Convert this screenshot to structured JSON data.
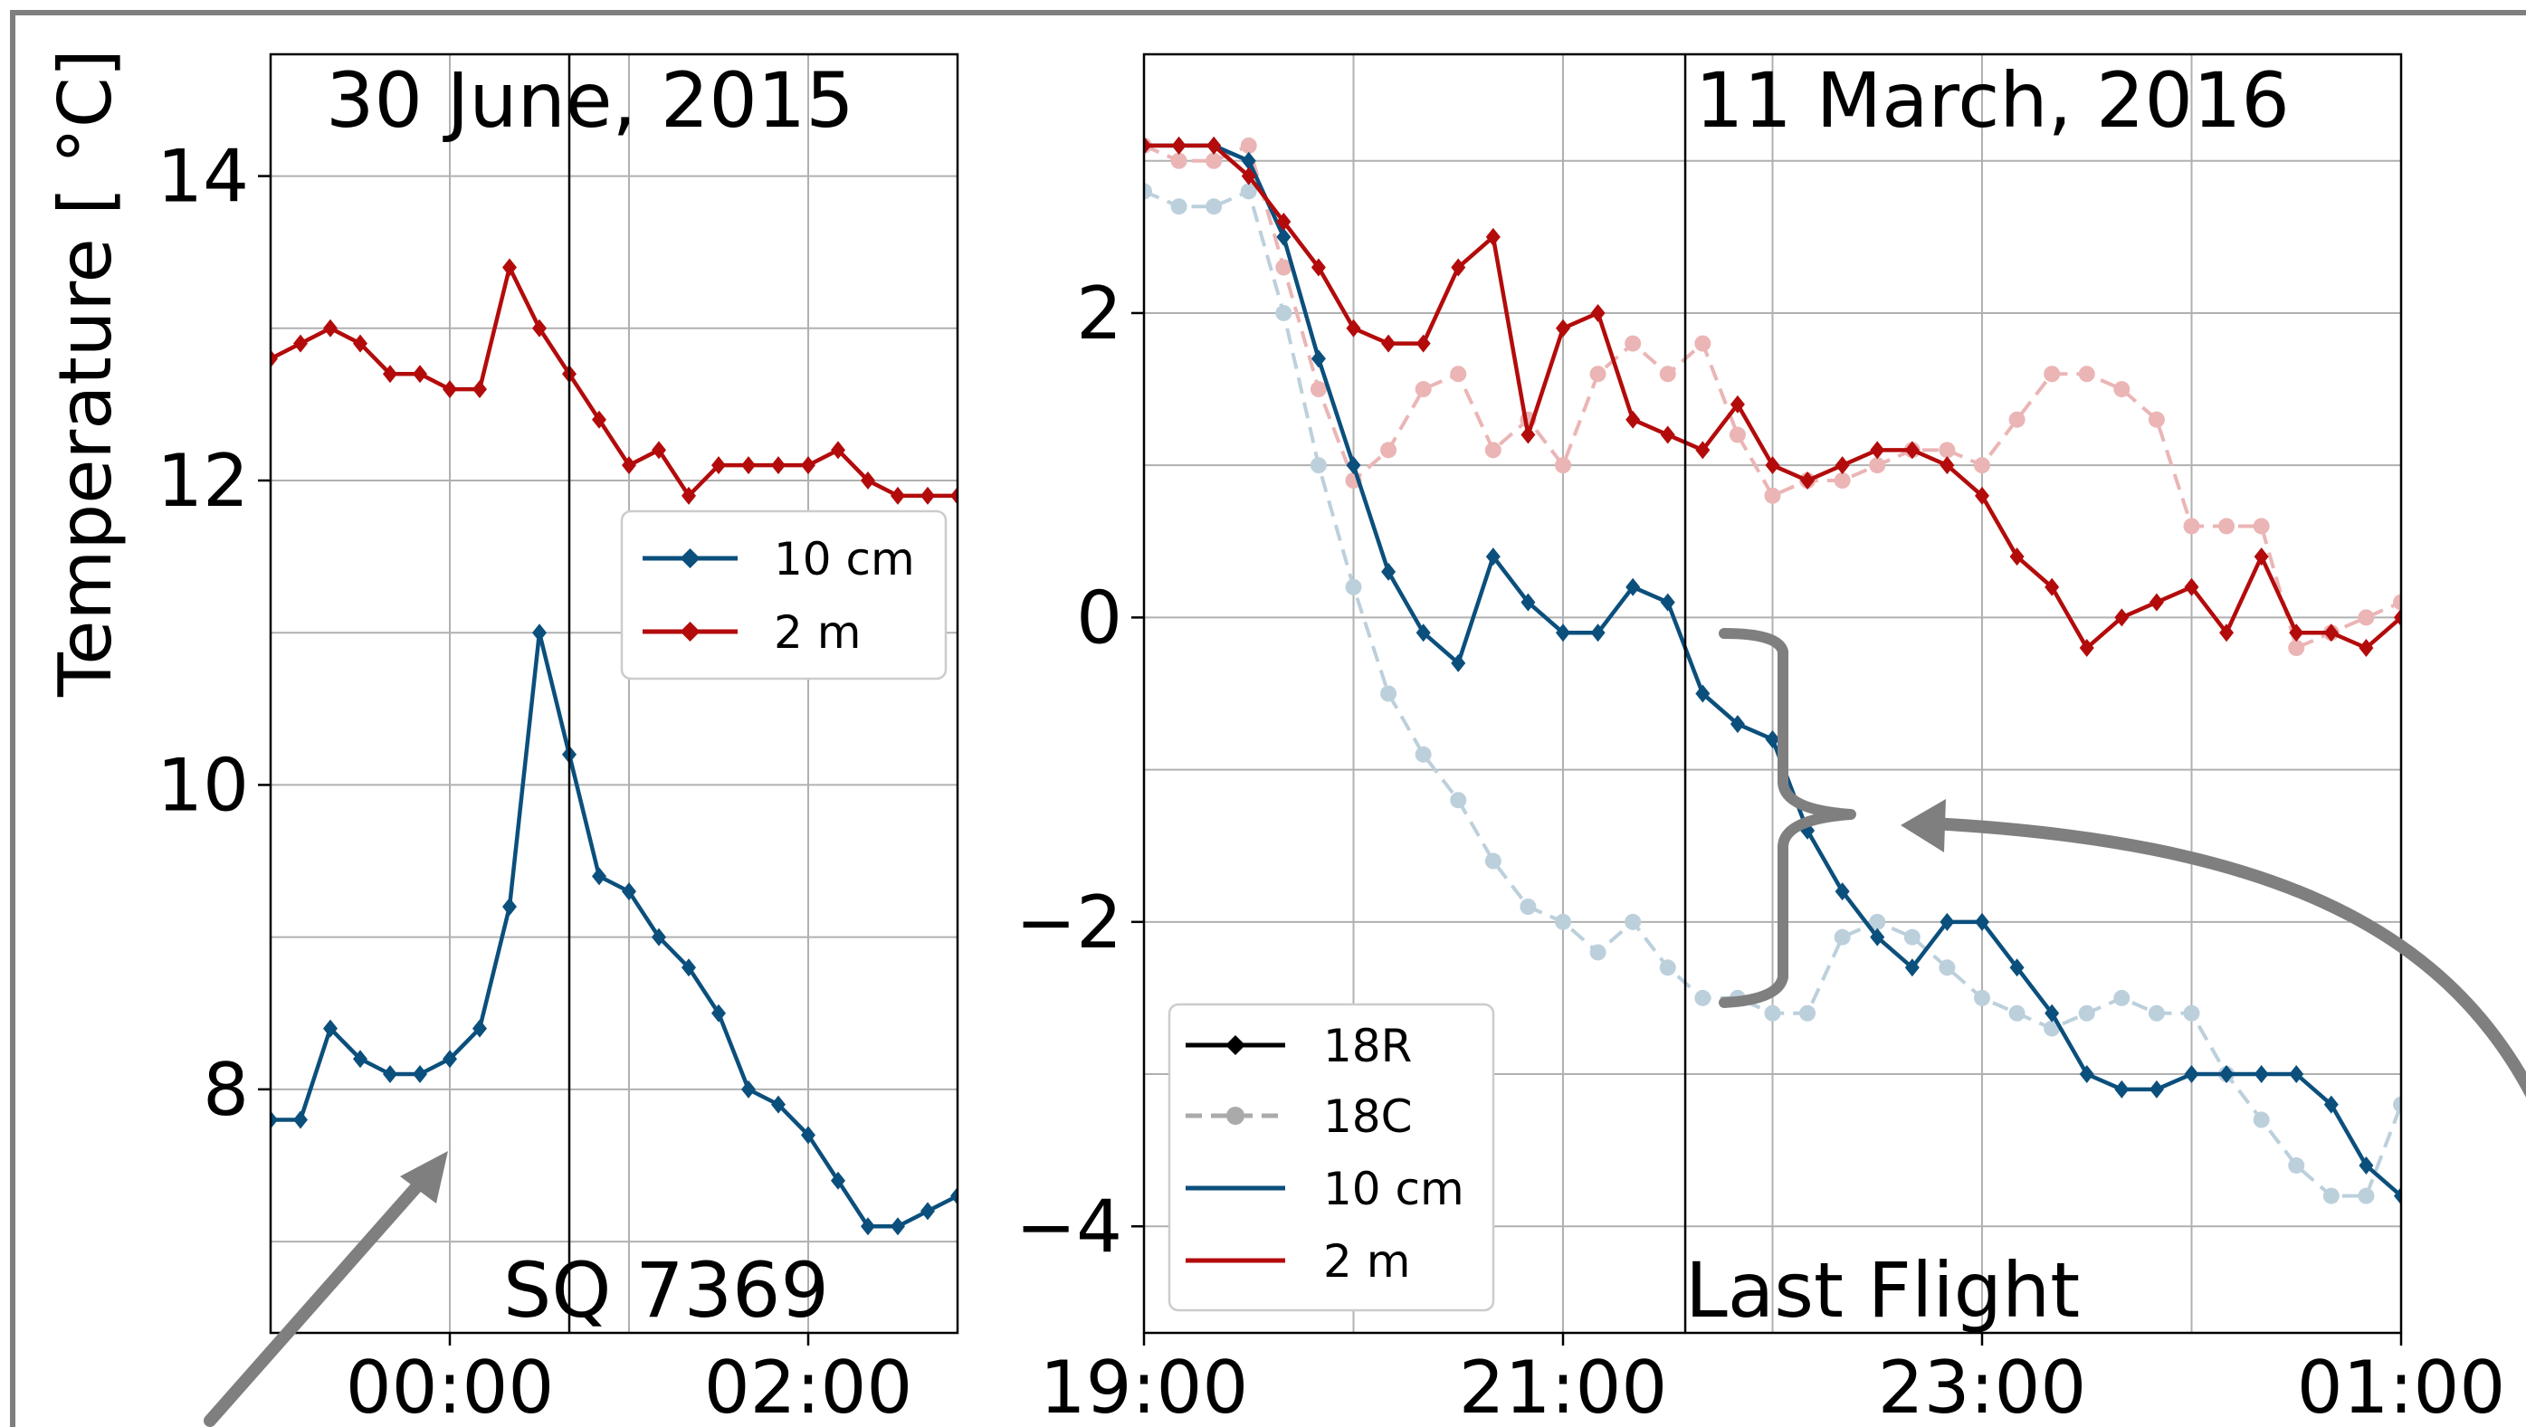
{
  "colors": {
    "blue": "#0b4f7c",
    "red": "#b30b0b",
    "blue_faint": "#bcd0dc",
    "red_faint": "#ebb5b5",
    "black": "#000000",
    "gray": "#7f7f7f"
  },
  "ylabel": "Temperature [ °C]",
  "chart_data": [
    {
      "type": "line",
      "annotation_top": "30 June, 2015",
      "annotation_bottom": "SQ 7369",
      "ylabel": "Temperature [ °C]",
      "xlabel": "",
      "xlim": [
        "23:00",
        "02:50"
      ],
      "ylim": [
        6.4,
        14.8
      ],
      "xticks": [
        "00:00",
        "02:00"
      ],
      "yticks": [
        8,
        10,
        12,
        14
      ],
      "grid": true,
      "event_line_time": "00:40",
      "legend": {
        "position": "center-right",
        "entries": [
          "10 cm",
          "2 m"
        ]
      },
      "series": [
        {
          "name": "10 cm",
          "color": "#0b4f7c",
          "style": "solid-diamond",
          "x": [
            "23:00",
            "23:10",
            "23:20",
            "23:30",
            "23:40",
            "23:50",
            "00:00",
            "00:10",
            "00:20",
            "00:30",
            "00:40",
            "00:50",
            "01:00",
            "01:10",
            "01:20",
            "01:30",
            "01:40",
            "01:50",
            "02:00",
            "02:10",
            "02:20",
            "02:30",
            "02:40",
            "02:50"
          ],
          "y": [
            7.8,
            7.8,
            8.4,
            8.2,
            8.1,
            8.1,
            8.2,
            8.4,
            9.2,
            11.0,
            10.2,
            9.4,
            9.3,
            9.0,
            8.8,
            8.5,
            8.0,
            7.9,
            7.7,
            7.4,
            7.1,
            7.1,
            7.2,
            7.3
          ]
        },
        {
          "name": "2 m",
          "color": "#b30b0b",
          "style": "solid-diamond",
          "x": [
            "23:00",
            "23:10",
            "23:20",
            "23:30",
            "23:40",
            "23:50",
            "00:00",
            "00:10",
            "00:20",
            "00:30",
            "00:40",
            "00:50",
            "01:00",
            "01:10",
            "01:20",
            "01:30",
            "01:40",
            "01:50",
            "02:00",
            "02:10",
            "02:20",
            "02:30",
            "02:40",
            "02:50"
          ],
          "y": [
            12.8,
            12.9,
            13.0,
            12.9,
            12.7,
            12.7,
            12.6,
            12.6,
            13.4,
            13.0,
            12.7,
            12.4,
            12.1,
            12.2,
            11.9,
            12.1,
            12.1,
            12.1,
            12.1,
            12.2,
            12.0,
            11.9,
            11.9,
            11.9
          ]
        }
      ]
    },
    {
      "type": "line",
      "annotation_top": "11 March, 2016",
      "annotation_bottom": "Last Flight",
      "xlabel": "",
      "ylabel": "",
      "xlim": [
        "19:00",
        "01:00"
      ],
      "ylim": [
        -4.7,
        3.7
      ],
      "xticks": [
        "19:00",
        "21:00",
        "23:00",
        "01:00"
      ],
      "yticks": [
        -4,
        -2,
        0,
        2
      ],
      "yticklabels": [
        "−4",
        "−2",
        "0",
        "2"
      ],
      "grid": true,
      "event_line_time": "21:35",
      "legend": {
        "position": "lower-left",
        "entries": [
          "18R",
          "18C",
          "10 cm",
          "2 m"
        ]
      },
      "series": [
        {
          "name": "10 cm",
          "color": "#0b4f7c",
          "style": "solid-diamond",
          "x": [
            "19:00",
            "19:10",
            "19:20",
            "19:30",
            "19:40",
            "19:50",
            "20:00",
            "20:10",
            "20:20",
            "20:30",
            "20:40",
            "20:50",
            "21:00",
            "21:10",
            "21:20",
            "21:30",
            "21:40",
            "21:50",
            "22:00",
            "22:10",
            "22:20",
            "22:30",
            "22:40",
            "22:50",
            "23:00",
            "23:10",
            "23:20",
            "23:30",
            "23:40",
            "23:50",
            "00:00",
            "00:10",
            "00:20",
            "00:30",
            "00:40",
            "00:50",
            "01:00"
          ],
          "y": [
            3.1,
            3.1,
            3.1,
            3.0,
            2.5,
            1.7,
            1.0,
            0.3,
            -0.1,
            -0.3,
            0.4,
            0.1,
            -0.1,
            -0.1,
            0.2,
            0.1,
            -0.5,
            -0.7,
            -0.8,
            -1.4,
            -1.8,
            -2.1,
            -2.3,
            -2.0,
            -2.0,
            -2.3,
            -2.6,
            -3.0,
            -3.1,
            -3.1,
            -3.0,
            -3.0,
            -3.0,
            -3.0,
            -3.2,
            -3.6,
            -3.8
          ]
        },
        {
          "name": "2 m",
          "color": "#b30b0b",
          "style": "solid-diamond",
          "x": [
            "19:00",
            "19:10",
            "19:20",
            "19:30",
            "19:40",
            "19:50",
            "20:00",
            "20:10",
            "20:20",
            "20:30",
            "20:40",
            "20:50",
            "21:00",
            "21:10",
            "21:20",
            "21:30",
            "21:40",
            "21:50",
            "22:00",
            "22:10",
            "22:20",
            "22:30",
            "22:40",
            "22:50",
            "23:00",
            "23:10",
            "23:20",
            "23:30",
            "23:40",
            "23:50",
            "00:00",
            "00:10",
            "00:20",
            "00:30",
            "00:40",
            "00:50",
            "01:00"
          ],
          "y": [
            3.1,
            3.1,
            3.1,
            2.9,
            2.6,
            2.3,
            1.9,
            1.8,
            1.8,
            2.3,
            2.5,
            1.2,
            1.9,
            2.0,
            1.3,
            1.2,
            1.1,
            1.4,
            1.0,
            0.9,
            1.0,
            1.1,
            1.1,
            1.0,
            0.8,
            0.4,
            0.2,
            -0.2,
            0.0,
            0.1,
            0.2,
            -0.1,
            0.4,
            -0.1,
            -0.1,
            -0.2,
            0.0
          ]
        },
        {
          "name": "18C",
          "color": "#bcd0dc",
          "style": "dashed-circle",
          "x": [
            "19:00",
            "19:10",
            "19:20",
            "19:30",
            "19:40",
            "19:50",
            "20:00",
            "20:10",
            "20:20",
            "20:30",
            "20:40",
            "20:50",
            "21:00",
            "21:10",
            "21:20",
            "21:30",
            "21:40",
            "21:50",
            "22:00",
            "22:10",
            "22:20",
            "22:30",
            "22:40",
            "22:50",
            "23:00",
            "23:10",
            "23:20",
            "23:30",
            "23:40",
            "23:50",
            "00:00",
            "00:10",
            "00:20",
            "00:30",
            "00:40",
            "00:50",
            "01:00"
          ],
          "y": [
            2.8,
            2.7,
            2.7,
            2.8,
            2.0,
            1.0,
            0.2,
            -0.5,
            -0.9,
            -1.2,
            -1.6,
            -1.9,
            -2.0,
            -2.2,
            -2.0,
            -2.3,
            -2.5,
            -2.5,
            -2.6,
            -2.6,
            -2.1,
            -2.0,
            -2.1,
            -2.3,
            -2.5,
            -2.6,
            -2.7,
            -2.6,
            -2.5,
            -2.6,
            -2.6,
            -3.0,
            -3.3,
            -3.6,
            -3.8,
            -3.8,
            -3.2
          ]
        },
        {
          "name": "18R",
          "color": "#ebb5b5",
          "style": "dashed-circle",
          "x": [
            "19:00",
            "19:10",
            "19:20",
            "19:30",
            "19:40",
            "19:50",
            "20:00",
            "20:10",
            "20:20",
            "20:30",
            "20:40",
            "20:50",
            "21:00",
            "21:10",
            "21:20",
            "21:30",
            "21:40",
            "21:50",
            "22:00",
            "22:10",
            "22:20",
            "22:30",
            "22:40",
            "22:50",
            "23:00",
            "23:10",
            "23:20",
            "23:30",
            "23:40",
            "23:50",
            "00:00",
            "00:10",
            "00:20",
            "00:30",
            "00:40",
            "00:50",
            "01:00"
          ],
          "y": [
            3.1,
            3.0,
            3.0,
            3.1,
            2.3,
            1.5,
            0.9,
            1.1,
            1.5,
            1.6,
            1.1,
            1.3,
            1.0,
            1.6,
            1.8,
            1.6,
            1.8,
            1.2,
            0.8,
            0.9,
            0.9,
            1.0,
            1.1,
            1.1,
            1.0,
            1.3,
            1.6,
            1.6,
            1.5,
            1.3,
            0.6,
            0.6,
            0.6,
            -0.2,
            -0.1,
            0.0,
            0.1
          ]
        }
      ]
    }
  ]
}
